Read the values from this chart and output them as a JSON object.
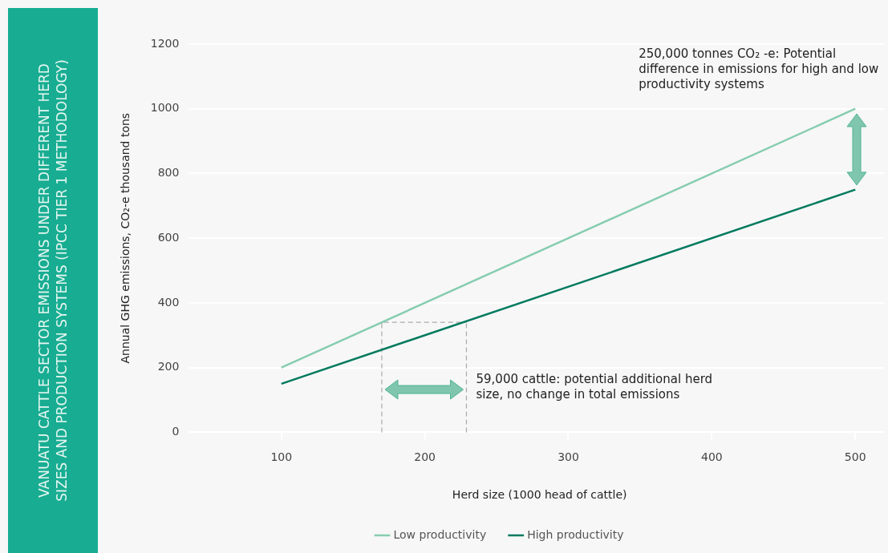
{
  "chart_data": {
    "type": "line",
    "title": "VANUATU CATTLE SECTOR EMISSIONS UNDER DIFFERENT HERD SIZES AND PRODUCTION SYSTEMS (IPCC TIER 1 METHODOLOGY)",
    "xlabel": "Herd size (1000 head of cattle)",
    "ylabel": "Annual GHG emissions, CO₂-e thousand tons",
    "x": [
      100,
      500
    ],
    "series": [
      {
        "name": "Low productivity",
        "color": "#86cdb0",
        "values": [
          200,
          1000
        ]
      },
      {
        "name": "High productivity",
        "color": "#007a5e",
        "values": [
          150,
          750
        ]
      }
    ],
    "xlim": [
      40,
      520
    ],
    "xticks": [
      100,
      200,
      300,
      400,
      500
    ],
    "ylim": [
      0,
      1200
    ],
    "yticks": [
      0,
      200,
      400,
      600,
      800,
      1000,
      1200
    ],
    "ref_lines": [
      {
        "axis": "x",
        "value": 170,
        "line_style": "dashed",
        "color": "#aaaaaa"
      },
      {
        "axis": "x",
        "value": 229,
        "line_style": "dashed",
        "color": "#aaaaaa"
      }
    ],
    "annotations": [
      {
        "text": "250,000 tonnes CO₂ -e: Potential difference in emissions for high and low productivity systems",
        "x": 500,
        "y": 1000
      },
      "59,000 cattle: potential additional herd size, no change in total emissions"
    ],
    "grid": "y",
    "legend": "bottom",
    "marker": "none",
    "line_style": "solid"
  }
}
